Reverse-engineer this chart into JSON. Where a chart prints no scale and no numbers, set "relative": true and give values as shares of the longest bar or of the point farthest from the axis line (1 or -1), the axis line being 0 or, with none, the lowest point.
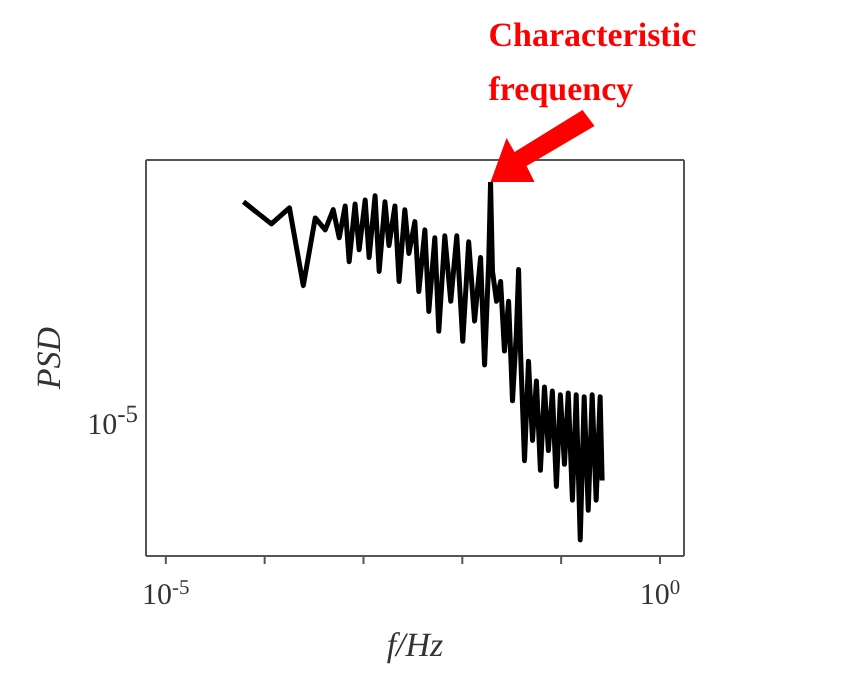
{
  "chart_data": {
    "type": "line",
    "xlabel": "f/Hz",
    "ylabel": "PSD",
    "log": "x",
    "grid": false,
    "legend": false,
    "marker": "none",
    "line_style": "solid",
    "relative": true,
    "xlim": [
      6.3e-06,
      1.75
    ],
    "xticks": [
      {
        "value": 1e-05,
        "label": "10$^{-5}$"
      },
      {
        "value": 0.0001,
        "label": null
      },
      {
        "value": 0.001,
        "label": null
      },
      {
        "value": 0.01,
        "label": null
      },
      {
        "value": 0.1,
        "label": null
      },
      {
        "value": 1,
        "label": "10$^{0}$"
      }
    ],
    "annotations": [
      "10$^{-5}$",
      {
        "text": "Characteristic\nfrequency",
        "x": 0.0193,
        "y": 1
      }
    ],
    "x": [
      6.11e-05,
      0.000117,
      0.000178,
      0.000246,
      0.000325,
      0.00041,
      0.000494,
      0.000568,
      0.000653,
      0.000716,
      0.000822,
      0.000904,
      0.00104,
      0.00114,
      0.00131,
      0.00144,
      0.00165,
      0.00181,
      0.00208,
      0.00229,
      0.00262,
      0.00288,
      0.00331,
      0.00363,
      0.00418,
      0.00458,
      0.00527,
      0.00578,
      0.00665,
      0.00764,
      0.00879,
      0.0101,
      0.0116,
      0.0133,
      0.0153,
      0.0168,
      0.0185,
      0.0193,
      0.0202,
      0.0222,
      0.0244,
      0.0267,
      0.0294,
      0.0322,
      0.0353,
      0.0371,
      0.0388,
      0.0426,
      0.0467,
      0.0513,
      0.0562,
      0.0617,
      0.0678,
      0.0743,
      0.0815,
      0.0895,
      0.0982,
      0.108,
      0.118,
      0.13,
      0.142,
      0.156,
      0.171,
      0.188,
      0.206,
      0.226,
      0.248,
      0.26
    ],
    "series": [
      {
        "color": "#000000",
        "values": [
          0.947,
          0.888,
          0.931,
          0.723,
          0.904,
          0.872,
          0.926,
          0.851,
          0.936,
          0.787,
          0.941,
          0.819,
          0.952,
          0.798,
          0.963,
          0.761,
          0.947,
          0.83,
          0.936,
          0.734,
          0.926,
          0.809,
          0.894,
          0.707,
          0.872,
          0.654,
          0.851,
          0.601,
          0.856,
          0.681,
          0.856,
          0.574,
          0.84,
          0.628,
          0.798,
          0.511,
          0.787,
          1,
          0.761,
          0.681,
          0.734,
          0.548,
          0.681,
          0.415,
          0.601,
          0.766,
          0.548,
          0.255,
          0.521,
          0.309,
          0.468,
          0.229,
          0.452,
          0.282,
          0.441,
          0.186,
          0.431,
          0.245,
          0.436,
          0.149,
          0.431,
          0.043,
          0.426,
          0.122,
          0.431,
          0.149,
          0.426,
          0.202
        ]
      }
    ]
  }
}
